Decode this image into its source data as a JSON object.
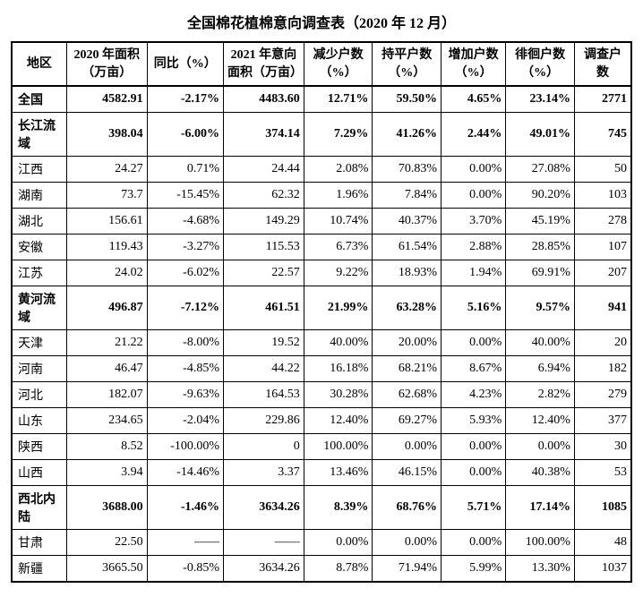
{
  "title": "全国棉花植棉意向调查表（2020 年 12 月）",
  "columns": [
    "地区",
    "2020 年面积（万亩）",
    "同比（%）",
    "2021 年意向面积（万亩）",
    "减少户数（%）",
    "持平户数（%）",
    "增加户数（%）",
    "徘徊户数（%）",
    "调查户数"
  ],
  "rows": [
    {
      "bold": true,
      "region": "全国",
      "area2020": "4582.91",
      "yoy": "-2.17%",
      "area2021": "4483.60",
      "dec": "12.71%",
      "flat": "59.50%",
      "inc": "4.65%",
      "hes": "23.14%",
      "cnt": "2771"
    },
    {
      "bold": true,
      "region": "长江流域",
      "area2020": "398.04",
      "yoy": "-6.00%",
      "area2021": "374.14",
      "dec": "7.29%",
      "flat": "41.26%",
      "inc": "2.44%",
      "hes": "49.01%",
      "cnt": "745"
    },
    {
      "bold": false,
      "region": "江西",
      "area2020": "24.27",
      "yoy": "0.71%",
      "area2021": "24.44",
      "dec": "2.08%",
      "flat": "70.83%",
      "inc": "0.00%",
      "hes": "27.08%",
      "cnt": "50"
    },
    {
      "bold": false,
      "region": "湖南",
      "area2020": "73.7",
      "yoy": "-15.45%",
      "area2021": "62.32",
      "dec": "1.96%",
      "flat": "7.84%",
      "inc": "0.00%",
      "hes": "90.20%",
      "cnt": "103"
    },
    {
      "bold": false,
      "region": "湖北",
      "area2020": "156.61",
      "yoy": "-4.68%",
      "area2021": "149.29",
      "dec": "10.74%",
      "flat": "40.37%",
      "inc": "3.70%",
      "hes": "45.19%",
      "cnt": "278"
    },
    {
      "bold": false,
      "region": "安徽",
      "area2020": "119.43",
      "yoy": "-3.27%",
      "area2021": "115.53",
      "dec": "6.73%",
      "flat": "61.54%",
      "inc": "2.88%",
      "hes": "28.85%",
      "cnt": "107"
    },
    {
      "bold": false,
      "region": "江苏",
      "area2020": "24.02",
      "yoy": "-6.02%",
      "area2021": "22.57",
      "dec": "9.22%",
      "flat": "18.93%",
      "inc": "1.94%",
      "hes": "69.91%",
      "cnt": "207"
    },
    {
      "bold": true,
      "region": "黄河流域",
      "area2020": "496.87",
      "yoy": "-7.12%",
      "area2021": "461.51",
      "dec": "21.99%",
      "flat": "63.28%",
      "inc": "5.16%",
      "hes": "9.57%",
      "cnt": "941"
    },
    {
      "bold": false,
      "region": "天津",
      "area2020": "21.22",
      "yoy": "-8.00%",
      "area2021": "19.52",
      "dec": "40.00%",
      "flat": "20.00%",
      "inc": "0.00%",
      "hes": "40.00%",
      "cnt": "20"
    },
    {
      "bold": false,
      "region": "河南",
      "area2020": "46.47",
      "yoy": "-4.85%",
      "area2021": "44.22",
      "dec": "16.18%",
      "flat": "68.21%",
      "inc": "8.67%",
      "hes": "6.94%",
      "cnt": "182"
    },
    {
      "bold": false,
      "region": "河北",
      "area2020": "182.07",
      "yoy": "-9.63%",
      "area2021": "164.53",
      "dec": "30.28%",
      "flat": "62.68%",
      "inc": "4.23%",
      "hes": "2.82%",
      "cnt": "279"
    },
    {
      "bold": false,
      "region": "山东",
      "area2020": "234.65",
      "yoy": "-2.04%",
      "area2021": "229.86",
      "dec": "12.40%",
      "flat": "69.27%",
      "inc": "5.93%",
      "hes": "12.40%",
      "cnt": "377"
    },
    {
      "bold": false,
      "region": "陕西",
      "area2020": "8.52",
      "yoy": "-100.00%",
      "area2021": "0",
      "dec": "100.00%",
      "flat": "0.00%",
      "inc": "0.00%",
      "hes": "0.00%",
      "cnt": "30"
    },
    {
      "bold": false,
      "region": "山西",
      "area2020": "3.94",
      "yoy": "-14.46%",
      "area2021": "3.37",
      "dec": "13.46%",
      "flat": "46.15%",
      "inc": "0.00%",
      "hes": "40.38%",
      "cnt": "53"
    },
    {
      "bold": true,
      "region": "西北内陆",
      "area2020": "3688.00",
      "yoy": "-1.46%",
      "area2021": "3634.26",
      "dec": "8.39%",
      "flat": "68.76%",
      "inc": "5.71%",
      "hes": "17.14%",
      "cnt": "1085"
    },
    {
      "bold": false,
      "region": "甘肃",
      "area2020": "22.50",
      "yoy": "——",
      "area2021": "——",
      "dec": "0.00%",
      "flat": "0.00%",
      "inc": "0.00%",
      "hes": "100.00%",
      "cnt": "48"
    },
    {
      "bold": false,
      "region": "新疆",
      "area2020": "3665.50",
      "yoy": "-0.85%",
      "area2021": "3634.26",
      "dec": "8.78%",
      "flat": "71.94%",
      "inc": "5.99%",
      "hes": "13.30%",
      "cnt": "1037"
    }
  ],
  "style": {
    "title_fontsize": 16,
    "body_fontsize": 14,
    "border_color": "#000000",
    "background_color": "#ffffff",
    "text_color": "#000000",
    "font_family": "SimSun"
  }
}
